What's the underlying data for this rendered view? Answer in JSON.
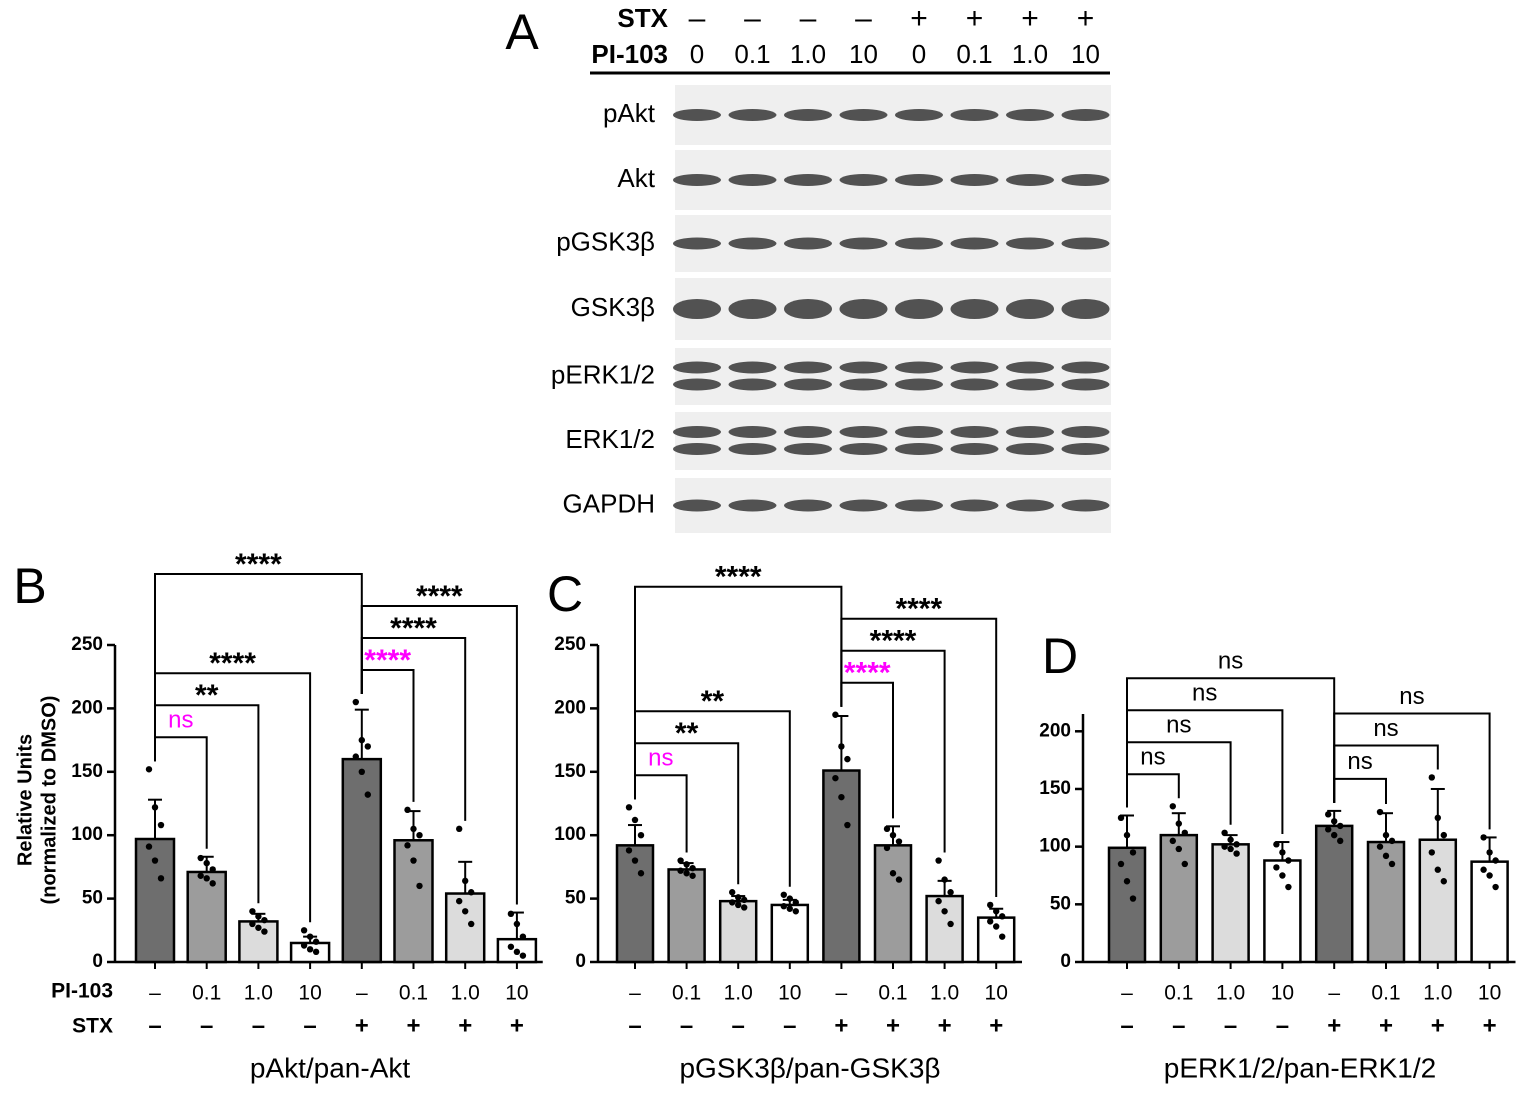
{
  "blot": {
    "label": "A",
    "rows": [
      {
        "name": "STX",
        "labels": [
          "–",
          "–",
          "–",
          "–",
          "+",
          "+",
          "+",
          "+"
        ]
      },
      {
        "name": "PI-103",
        "labels": [
          "0",
          "0.1",
          "1.0",
          "10",
          "0",
          "0.1",
          "1.0",
          "10"
        ]
      }
    ],
    "bands": [
      "pAkt",
      "Akt",
      "pGSK3β",
      "GSK3β",
      "pERK1/2",
      "ERK1/2",
      "GAPDH"
    ]
  },
  "chart_data": [
    {
      "type": "bar",
      "panel_label": "B",
      "x_title": "pAkt/pan-Akt",
      "y_title": "Relative Units",
      "y_subtitle": "(normalized to DMSO)",
      "row_labels": [
        "PI-103",
        "STX"
      ],
      "categories": [
        "–",
        "0.1",
        "1.0",
        "10",
        "–",
        "0.1",
        "1.0",
        "10"
      ],
      "categories2": [
        "–",
        "–",
        "–",
        "–",
        "+",
        "+",
        "+",
        "+"
      ],
      "colors": [
        "#6e6e6e",
        "#9c9c9c",
        "#dcdcdc",
        "#ffffff",
        "#6e6e6e",
        "#9c9c9c",
        "#dcdcdc",
        "#ffffff"
      ],
      "values": [
        97,
        71,
        32,
        15,
        160,
        96,
        54,
        18
      ],
      "errors": [
        31,
        12,
        6,
        5,
        39,
        23,
        25,
        21
      ],
      "points": [
        [
          152,
          122,
          108,
          91,
          80,
          66
        ],
        [
          82,
          78,
          73,
          68,
          66,
          62
        ],
        [
          40,
          36,
          33,
          30,
          27,
          24
        ],
        [
          25,
          20,
          16,
          13,
          10,
          8
        ],
        [
          205,
          175,
          170,
          162,
          150,
          132
        ],
        [
          120,
          105,
          100,
          92,
          80,
          60
        ],
        [
          105,
          64,
          55,
          48,
          40,
          30
        ],
        [
          38,
          30,
          20,
          12,
          8,
          5
        ]
      ],
      "ylim": [
        0,
        250
      ],
      "yticks": [
        0,
        50,
        100,
        150,
        200,
        250
      ],
      "brackets": [
        {
          "pair": [
            0,
            1
          ],
          "text": "ns",
          "color": "#ff00ff"
        },
        {
          "pair": [
            0,
            2
          ],
          "text": "**",
          "color": "#000000"
        },
        {
          "pair": [
            0,
            3
          ],
          "text": "****",
          "color": "#000000"
        },
        {
          "pair": [
            4,
            5
          ],
          "text": "****",
          "color": "#ff00ff"
        },
        {
          "pair": [
            4,
            6
          ],
          "text": "****",
          "color": "#000000"
        },
        {
          "pair": [
            4,
            7
          ],
          "text": "****",
          "color": "#000000"
        },
        {
          "pair": [
            0,
            4
          ],
          "text": "****",
          "color": "#000000"
        }
      ]
    },
    {
      "type": "bar",
      "panel_label": "C",
      "x_title": "pGSK3β/pan-GSK3β",
      "categories": [
        "–",
        "0.1",
        "1.0",
        "10",
        "–",
        "0.1",
        "1.0",
        "10"
      ],
      "categories2": [
        "–",
        "–",
        "–",
        "–",
        "+",
        "+",
        "+",
        "+"
      ],
      "colors": [
        "#6e6e6e",
        "#9c9c9c",
        "#dcdcdc",
        "#ffffff",
        "#6e6e6e",
        "#9c9c9c",
        "#dcdcdc",
        "#ffffff"
      ],
      "values": [
        92,
        73,
        48,
        45,
        151,
        92,
        52,
        35
      ],
      "errors": [
        16,
        5,
        4,
        4,
        43,
        15,
        12,
        7
      ],
      "points": [
        [
          122,
          112,
          100,
          88,
          80,
          70
        ],
        [
          80,
          77,
          74,
          72,
          70,
          68
        ],
        [
          55,
          51,
          49,
          47,
          45,
          43
        ],
        [
          53,
          50,
          47,
          44,
          42,
          40
        ],
        [
          195,
          170,
          160,
          145,
          130,
          108
        ],
        [
          105,
          100,
          95,
          90,
          70,
          65
        ],
        [
          80,
          65,
          55,
          48,
          40,
          30
        ],
        [
          45,
          40,
          36,
          32,
          28,
          20
        ]
      ],
      "ylim": [
        0,
        250
      ],
      "yticks": [
        0,
        50,
        100,
        150,
        200,
        250
      ],
      "brackets": [
        {
          "pair": [
            0,
            1
          ],
          "text": "ns",
          "color": "#ff00ff"
        },
        {
          "pair": [
            0,
            2
          ],
          "text": "**",
          "color": "#000000"
        },
        {
          "pair": [
            0,
            3
          ],
          "text": "**",
          "color": "#000000"
        },
        {
          "pair": [
            4,
            5
          ],
          "text": "****",
          "color": "#ff00ff"
        },
        {
          "pair": [
            4,
            6
          ],
          "text": "****",
          "color": "#000000"
        },
        {
          "pair": [
            4,
            7
          ],
          "text": "****",
          "color": "#000000"
        },
        {
          "pair": [
            0,
            4
          ],
          "text": "****",
          "color": "#000000"
        }
      ]
    },
    {
      "type": "bar",
      "panel_label": "D",
      "x_title": "pERK1/2/pan-ERK1/2",
      "categories": [
        "–",
        "0.1",
        "1.0",
        "10",
        "–",
        "0.1",
        "1.0",
        "10"
      ],
      "categories2": [
        "–",
        "–",
        "–",
        "–",
        "+",
        "+",
        "+",
        "+"
      ],
      "colors": [
        "#6e6e6e",
        "#9c9c9c",
        "#dcdcdc",
        "#ffffff",
        "#6e6e6e",
        "#9c9c9c",
        "#dcdcdc",
        "#ffffff"
      ],
      "values": [
        99,
        110,
        102,
        88,
        118,
        104,
        106,
        87
      ],
      "errors": [
        28,
        19,
        8,
        16,
        13,
        25,
        44,
        21
      ],
      "points": [
        [
          125,
          110,
          95,
          85,
          70,
          55
        ],
        [
          135,
          120,
          112,
          105,
          98,
          85
        ],
        [
          112,
          106,
          102,
          100,
          98,
          94
        ],
        [
          102,
          95,
          88,
          82,
          75,
          65
        ],
        [
          128,
          122,
          118,
          115,
          110,
          105
        ],
        [
          130,
          110,
          105,
          100,
          92,
          85
        ],
        [
          160,
          125,
          110,
          95,
          80,
          70
        ],
        [
          108,
          95,
          88,
          80,
          75,
          65
        ]
      ],
      "ylim": [
        0,
        215
      ],
      "yticks": [
        0,
        50,
        100,
        150,
        200
      ],
      "brackets": [
        {
          "pair": [
            0,
            1
          ],
          "text": "ns",
          "color": "#000000"
        },
        {
          "pair": [
            0,
            2
          ],
          "text": "ns",
          "color": "#000000"
        },
        {
          "pair": [
            0,
            3
          ],
          "text": "ns",
          "color": "#000000"
        },
        {
          "pair": [
            4,
            5
          ],
          "text": "ns",
          "color": "#000000"
        },
        {
          "pair": [
            4,
            6
          ],
          "text": "ns",
          "color": "#000000"
        },
        {
          "pair": [
            4,
            7
          ],
          "text": "ns",
          "color": "#000000"
        },
        {
          "pair": [
            0,
            4
          ],
          "text": "ns",
          "color": "#000000"
        }
      ]
    }
  ]
}
